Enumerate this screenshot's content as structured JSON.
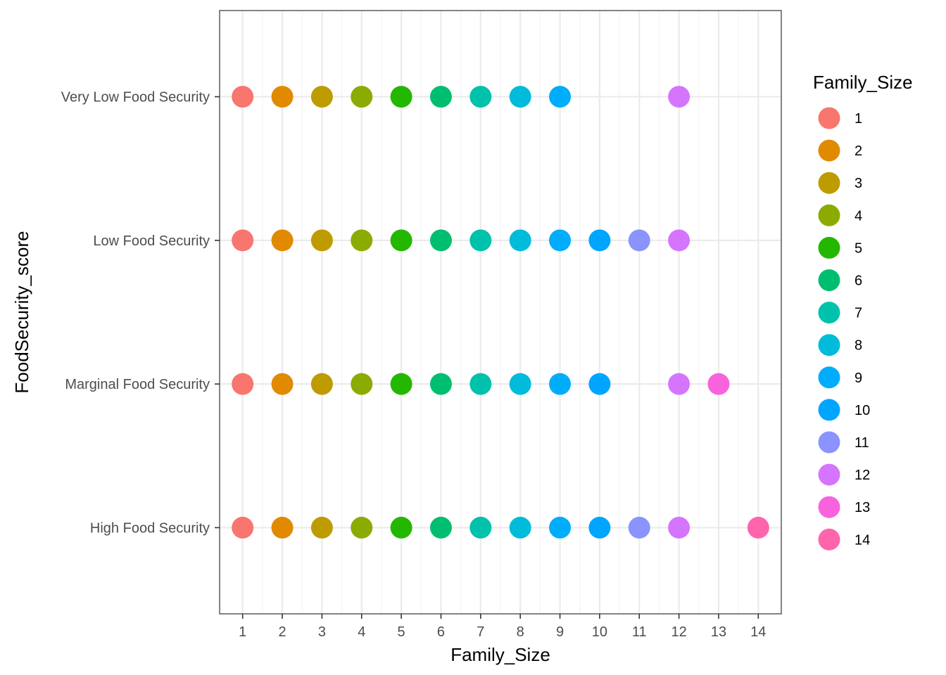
{
  "chart_data": {
    "type": "scatter",
    "xlabel": "Family_Size",
    "ylabel": "FoodSecurity_score",
    "x_ticks": [
      1,
      2,
      3,
      4,
      5,
      6,
      7,
      8,
      9,
      10,
      11,
      12,
      13,
      14
    ],
    "xlim": [
      0.42,
      14.58
    ],
    "y_categories": [
      "High Food Security",
      "Marginal Food Security",
      "Low Food Security",
      "Very Low Food Security"
    ],
    "grid": true,
    "legend": {
      "title": "Family_Size",
      "placement": "right",
      "entries": [
        "1",
        "2",
        "3",
        "4",
        "5",
        "6",
        "7",
        "8",
        "9",
        "10",
        "11",
        "12",
        "13",
        "14"
      ]
    },
    "colors": {
      "1": "#F8766D",
      "2": "#E18A00",
      "3": "#BE9C00",
      "4": "#8CAB00",
      "5": "#24B700",
      "6": "#00BE70",
      "7": "#00C1AB",
      "8": "#00BBDA",
      "9": "#00ACFC",
      "10": "#00A5FF",
      "11": "#8B93FF",
      "12": "#D575FE",
      "13": "#F962DD",
      "14": "#FF65AC"
    },
    "points": [
      {
        "category": "Very Low Food Security",
        "x": [
          1,
          2,
          3,
          4,
          5,
          6,
          7,
          8,
          9,
          12
        ]
      },
      {
        "category": "Low Food Security",
        "x": [
          1,
          2,
          3,
          4,
          5,
          6,
          7,
          8,
          9,
          10,
          11,
          12
        ]
      },
      {
        "category": "Marginal Food Security",
        "x": [
          1,
          2,
          3,
          4,
          5,
          6,
          7,
          8,
          9,
          10,
          12,
          13
        ]
      },
      {
        "category": "High Food Security",
        "x": [
          1,
          2,
          3,
          4,
          5,
          6,
          7,
          8,
          9,
          10,
          11,
          12,
          14
        ]
      }
    ]
  }
}
